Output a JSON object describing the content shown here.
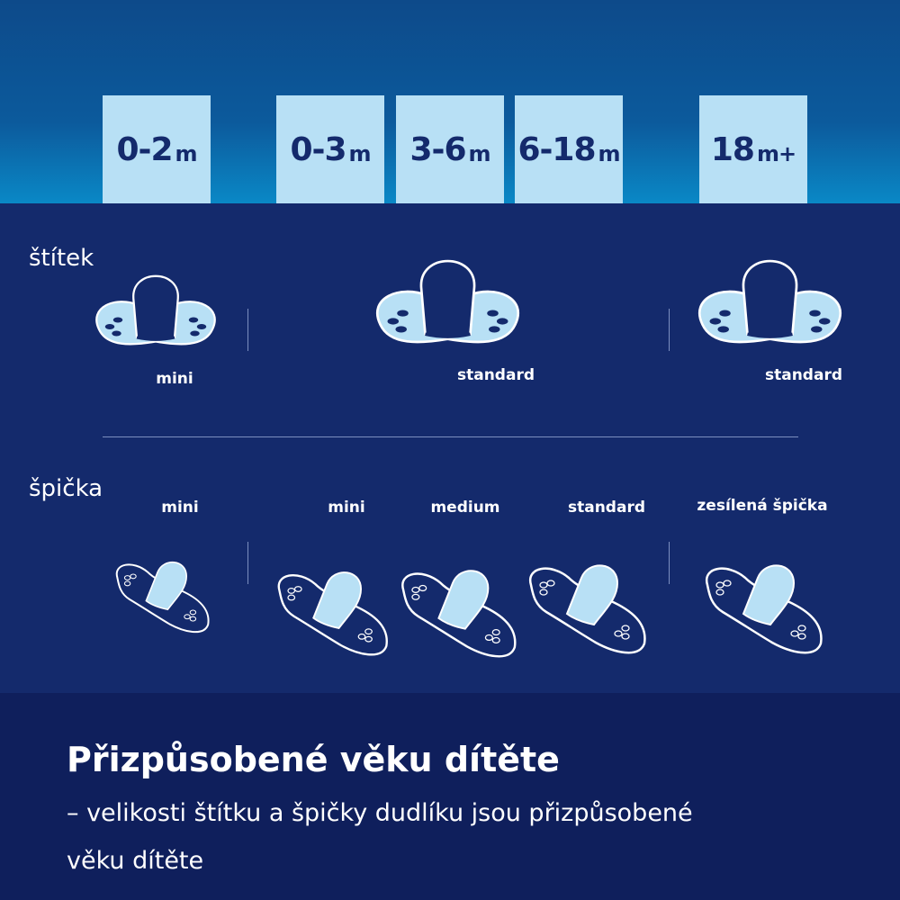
{
  "ages": [
    {
      "num": "0-2",
      "unit": "m"
    },
    {
      "num": "0-3",
      "unit": "m"
    },
    {
      "num": "3-6",
      "unit": "m"
    },
    {
      "num": "6-18",
      "unit": "m"
    },
    {
      "num": "18",
      "unit": "m+"
    }
  ],
  "shield": {
    "label": "štítek",
    "sizes": [
      "mini",
      "standard",
      "standard"
    ]
  },
  "tip": {
    "label": "špička",
    "sizes": [
      "mini",
      "mini",
      "medium",
      "standard",
      "zesílená špička"
    ]
  },
  "footer": {
    "title": "Přizpůsobené věku dítěte",
    "line1": "– velikosti štítku a špičky dudlíku jsou přizpůsobené",
    "line2": "věku dítěte"
  },
  "colors": {
    "header_top": "#0d4a8a",
    "header_bottom": "#0a88c6",
    "background": "#142a6c",
    "footer": "#0f1f5c",
    "light_blue": "#b8e0f5"
  }
}
